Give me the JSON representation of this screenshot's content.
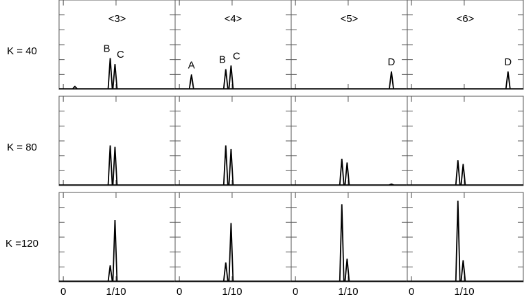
{
  "chart_data": {
    "type": "line",
    "column_titles": [
      "<3>",
      "<4>",
      "<5>",
      "<6>"
    ],
    "xlim": [
      -0.008,
      0.212
    ],
    "xticks": [
      {
        "value": 0,
        "label": "0"
      },
      {
        "value": 0.1,
        "label": "1/10"
      }
    ],
    "ylim": [
      0,
      6
    ],
    "yticks": [
      1,
      2,
      3,
      4,
      5
    ],
    "color": "#000000",
    "rows": [
      {
        "title": "K = 40",
        "panels": [
          {
            "x": [
              0.022,
              0.089,
              0.098
            ],
            "values": [
              0.2,
              2.1,
              1.7
            ],
            "labels": [
              null,
              "B",
              "C"
            ]
          },
          {
            "x": [
              0.023,
              0.088,
              0.098
            ],
            "values": [
              1.0,
              1.35,
              1.6
            ],
            "labels": [
              "A",
              "B",
              "C"
            ]
          },
          {
            "x": [
              0.182
            ],
            "values": [
              1.2
            ],
            "labels": [
              "D"
            ]
          },
          {
            "x": [
              0.183
            ],
            "values": [
              1.2
            ],
            "labels": [
              "D"
            ]
          }
        ]
      },
      {
        "title": "K = 80",
        "panels": [
          {
            "x": [
              0.089,
              0.098
            ],
            "values": [
              2.7,
              2.6
            ],
            "labels": [
              null,
              null
            ]
          },
          {
            "x": [
              0.088,
              0.098
            ],
            "values": [
              2.7,
              2.45
            ],
            "labels": [
              null,
              null
            ]
          },
          {
            "x": [
              0.088,
              0.098,
              0.182
            ],
            "values": [
              1.8,
              1.55,
              0.1
            ],
            "labels": [
              null,
              null,
              null
            ]
          },
          {
            "x": [
              0.088,
              0.098
            ],
            "values": [
              1.7,
              1.45
            ],
            "labels": [
              null,
              null
            ]
          }
        ]
      },
      {
        "title": "K =120",
        "panels": [
          {
            "x": [
              0.089,
              0.098
            ],
            "values": [
              1.1,
              4.15
            ],
            "labels": [
              null,
              null
            ]
          },
          {
            "x": [
              0.088,
              0.098
            ],
            "values": [
              1.3,
              3.95
            ],
            "labels": [
              null,
              null
            ]
          },
          {
            "x": [
              0.088,
              0.098
            ],
            "values": [
              5.2,
              1.55
            ],
            "labels": [
              null,
              null
            ]
          },
          {
            "x": [
              0.088,
              0.098
            ],
            "values": [
              5.45,
              1.45
            ],
            "labels": [
              null,
              null
            ]
          }
        ]
      }
    ]
  }
}
